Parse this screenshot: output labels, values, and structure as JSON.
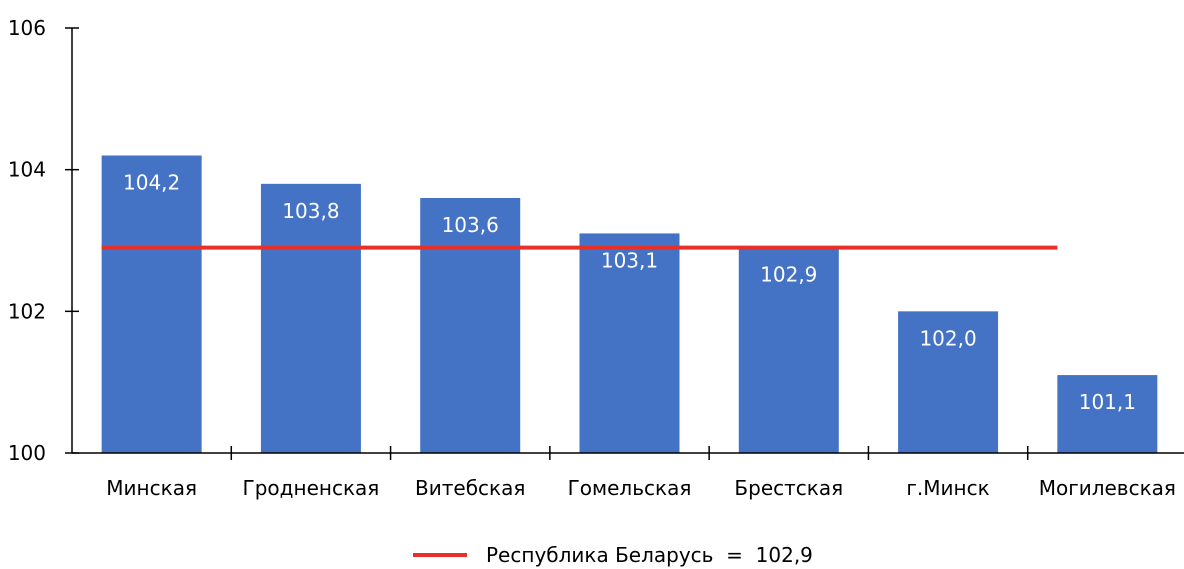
{
  "chart_data": {
    "type": "bar",
    "categories": [
      "Минская",
      "Гродненская",
      "Витебская",
      "Гомельская",
      "Брестская",
      "г.Минск",
      "Могилевская"
    ],
    "values": [
      104.2,
      103.8,
      103.6,
      103.1,
      102.9,
      102.0,
      101.1
    ],
    "value_labels": [
      "104,2",
      "103,8",
      "103,6",
      "103,1",
      "102,9",
      "102,0",
      "101,1"
    ],
    "ylim": [
      100,
      106
    ],
    "yticks": [
      100,
      102,
      104,
      106
    ],
    "ytick_labels": [
      "100",
      "102",
      "104",
      "106"
    ],
    "reference_line": {
      "value": 102.9,
      "legend_label": "Республика Беларусь  =  102,9"
    },
    "title": "",
    "xlabel": "",
    "ylabel": "",
    "grid": false,
    "legend_placement": "bottom-center",
    "colors": {
      "bar": "#4472C4",
      "reference_line": "#E8302A",
      "axis": "#000000",
      "data_label": "#FFFFFF"
    }
  }
}
